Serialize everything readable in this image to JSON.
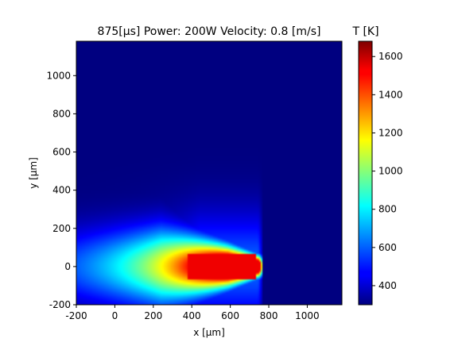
{
  "chart_data": {
    "type": "heatmap",
    "title": "875[μs] Power: 200W Velocity: 0.8 [m/s]",
    "xlabel": "x [μm]",
    "ylabel": "y [μm]",
    "xlim": [
      -200,
      1180
    ],
    "ylim": [
      -200,
      1180
    ],
    "xticks": [
      "-200",
      "0",
      "200",
      "400",
      "600",
      "800",
      "1000"
    ],
    "yticks": [
      "-200",
      "0",
      "200",
      "400",
      "600",
      "800",
      "1000"
    ],
    "colormap": "jet",
    "colorbar": {
      "label": "T [K]",
      "range": [
        300,
        1680
      ],
      "ticks": [
        "400",
        "600",
        "800",
        "1000",
        "1200",
        "1400",
        "1600"
      ]
    },
    "field": {
      "description_units": "temperature in K over x,y in μm",
      "ambient_T": 300,
      "peak_T": 1680,
      "hot_core_x_range": [
        380,
        730
      ],
      "hot_core_half_width_y": 70,
      "tail_extent_x": -60,
      "plume_half_width_y": 220,
      "front_x": 740
    }
  }
}
